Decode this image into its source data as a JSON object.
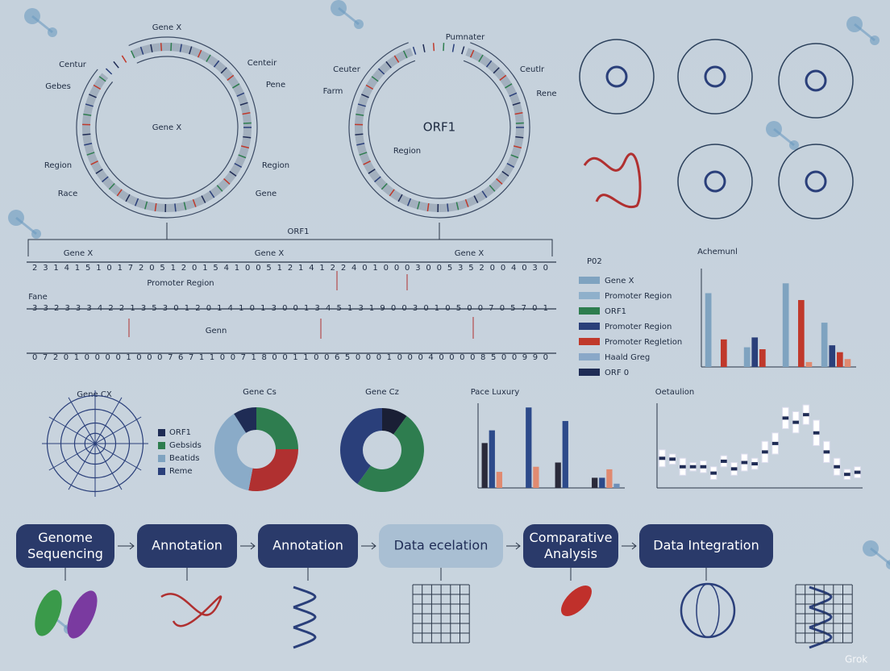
{
  "circular_maps": [
    {
      "title": "Gene X",
      "center": "Gene X",
      "labels": [
        "Centur",
        "Gebes",
        "Region",
        "Race",
        "Centeir",
        "Pene",
        "Region",
        "Gene"
      ]
    },
    {
      "title": "Pumnater",
      "center": "ORF1",
      "labels": [
        "Ceuter",
        "Farm",
        "Region",
        "Ceutlr",
        "Rene"
      ]
    }
  ],
  "sequence": {
    "top_label": "ORF1",
    "gene_labels": [
      "Gene X",
      "Gene X",
      "Gene X"
    ],
    "annotations": [
      "Promoter Region",
      "Fane",
      "Genn"
    ],
    "rows": [
      "2 3 1 4 1 5 1 0 1 7 2 0 5 1 2 0 1 5 4 1 0 0 5 1 2 1 4 1 2 2 4 0 1 0 0 0 3 0 0 5 3 5 2 0 0 4 0 3 0",
      "3 3 2 3 3 3 4 2 2 1 3 5 3 0 1 2 0 1 4 1 0 1 3 0 0 1 3 4 5 1 3 1 9 0 0 3 0 1 0 5 0 0 7 0 5 7 0 1",
      "0 7 2 0 1 0 0 0 0 1 0 0 0 7 6 7 1 1 0 0 7 1 8 0 0 1 1 0 0 6 5 0 0 0 1 0 0 0 4 0 0 0 0 8 5 0 0 9 9 0"
    ]
  },
  "legend": {
    "title": "P02",
    "items": [
      {
        "label": "Gene X",
        "color": "#7fa3c0"
      },
      {
        "label": "Promoter Region",
        "color": "#8fb0cb"
      },
      {
        "label": "ORF1",
        "color": "#2e7d4f"
      },
      {
        "label": "Promoter Region",
        "color": "#2a3f7a"
      },
      {
        "label": "Promoter Regletion",
        "color": "#c0392b"
      },
      {
        "label": "Haald Greg",
        "color": "#8aa8c8"
      },
      {
        "label": "ORF 0",
        "color": "#1f2c55"
      }
    ]
  },
  "bar_chart_1": {
    "title": "Achemunl",
    "ylim": [
      0,
      100
    ],
    "series": [
      {
        "color": "#7fa3c0",
        "values": [
          75,
          20,
          85,
          45
        ]
      },
      {
        "color": "#2a3f7a",
        "values": [
          null,
          30,
          null,
          22
        ]
      },
      {
        "color": "#c0392b",
        "values": [
          28,
          18,
          68,
          15
        ]
      },
      {
        "color": "#e08a70",
        "values": [
          null,
          null,
          5,
          8
        ]
      }
    ]
  },
  "gene_cx": {
    "title": "Gene CX",
    "legend": [
      {
        "label": "ORF1",
        "color": "#1f2c55"
      },
      {
        "label": "Gebsids",
        "color": "#2e7d4f"
      },
      {
        "label": "Beatids",
        "color": "#7fa3c0"
      },
      {
        "label": "Reme",
        "color": "#2a3f7a"
      }
    ]
  },
  "donut_1": {
    "title": "Gene Cs",
    "values": [
      25,
      28,
      38,
      9
    ],
    "colors": [
      "#2e7d4f",
      "#b03030",
      "#8aabc8",
      "#1f2c55"
    ]
  },
  "donut_2": {
    "title": "Gene Cz",
    "values": [
      10,
      50,
      40
    ],
    "colors": [
      "#1a1f35",
      "#2e7d4f",
      "#2a3f7a"
    ]
  },
  "bar_chart_2": {
    "title": "Pace Luxury",
    "ylim": [
      0,
      100
    ],
    "series": [
      {
        "color": "#2a2a3a",
        "values": [
          53,
          null,
          30,
          12
        ]
      },
      {
        "color": "#2d4a8a",
        "values": [
          68,
          95,
          79,
          12
        ]
      },
      {
        "color": "#e08a70",
        "values": [
          19,
          25,
          null,
          22
        ]
      },
      {
        "color": "#6e8fb8",
        "values": [
          null,
          null,
          null,
          5
        ]
      }
    ]
  },
  "range_chart": {
    "title": "Oetaulion",
    "ylim": [
      0,
      100
    ],
    "ranges": [
      [
        25,
        45
      ],
      [
        28,
        40
      ],
      [
        15,
        35
      ],
      [
        20,
        30
      ],
      [
        18,
        32
      ],
      [
        10,
        25
      ],
      [
        25,
        38
      ],
      [
        15,
        30
      ],
      [
        20,
        40
      ],
      [
        22,
        35
      ],
      [
        30,
        55
      ],
      [
        40,
        65
      ],
      [
        70,
        95
      ],
      [
        65,
        90
      ],
      [
        75,
        98
      ],
      [
        50,
        80
      ],
      [
        30,
        55
      ],
      [
        15,
        35
      ],
      [
        10,
        22
      ],
      [
        12,
        25
      ]
    ]
  },
  "pipeline": [
    "Genome Sequencing",
    "Annotation",
    "Annotation",
    "Data ecelation",
    "Comparative Analysis",
    "Data Integration"
  ],
  "watermark": "Grok"
}
